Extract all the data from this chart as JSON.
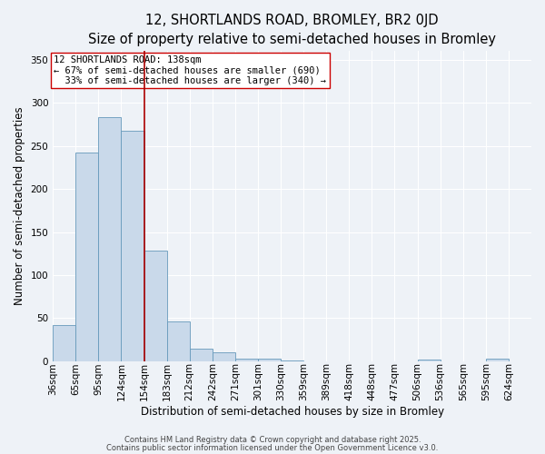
{
  "title_line1": "12, SHORTLANDS ROAD, BROMLEY, BR2 0JD",
  "title_line2": "Size of property relative to semi-detached houses in Bromley",
  "xlabel": "Distribution of semi-detached houses by size in Bromley",
  "ylabel": "Number of semi-detached properties",
  "bin_labels": [
    "36sqm",
    "65sqm",
    "95sqm",
    "124sqm",
    "154sqm",
    "183sqm",
    "212sqm",
    "242sqm",
    "271sqm",
    "301sqm",
    "330sqm",
    "359sqm",
    "389sqm",
    "418sqm",
    "448sqm",
    "477sqm",
    "506sqm",
    "536sqm",
    "565sqm",
    "595sqm",
    "624sqm"
  ],
  "bar_values": [
    42,
    242,
    283,
    268,
    128,
    46,
    15,
    10,
    3,
    3,
    1,
    0,
    0,
    0,
    0,
    0,
    2,
    0,
    0,
    3,
    0
  ],
  "bar_color": "#c9d9ea",
  "bar_edge_color": "#6699bb",
  "vline_x": 4,
  "vline_color": "#aa0000",
  "ylim": [
    0,
    360
  ],
  "yticks": [
    0,
    50,
    100,
    150,
    200,
    250,
    300,
    350
  ],
  "annotation_text": "12 SHORTLANDS ROAD: 138sqm\n← 67% of semi-detached houses are smaller (690)\n  33% of semi-detached houses are larger (340) →",
  "annotation_box_color": "#ffffff",
  "annotation_box_edge": "#cc0000",
  "footer_line1": "Contains HM Land Registry data © Crown copyright and database right 2025.",
  "footer_line2": "Contains public sector information licensed under the Open Government Licence v3.0.",
  "background_color": "#eef2f7",
  "grid_color": "#ffffff",
  "title_fontsize": 10.5,
  "subtitle_fontsize": 9.5,
  "axis_label_fontsize": 8.5,
  "tick_fontsize": 7.5,
  "annotation_fontsize": 7.5,
  "footer_fontsize": 6
}
